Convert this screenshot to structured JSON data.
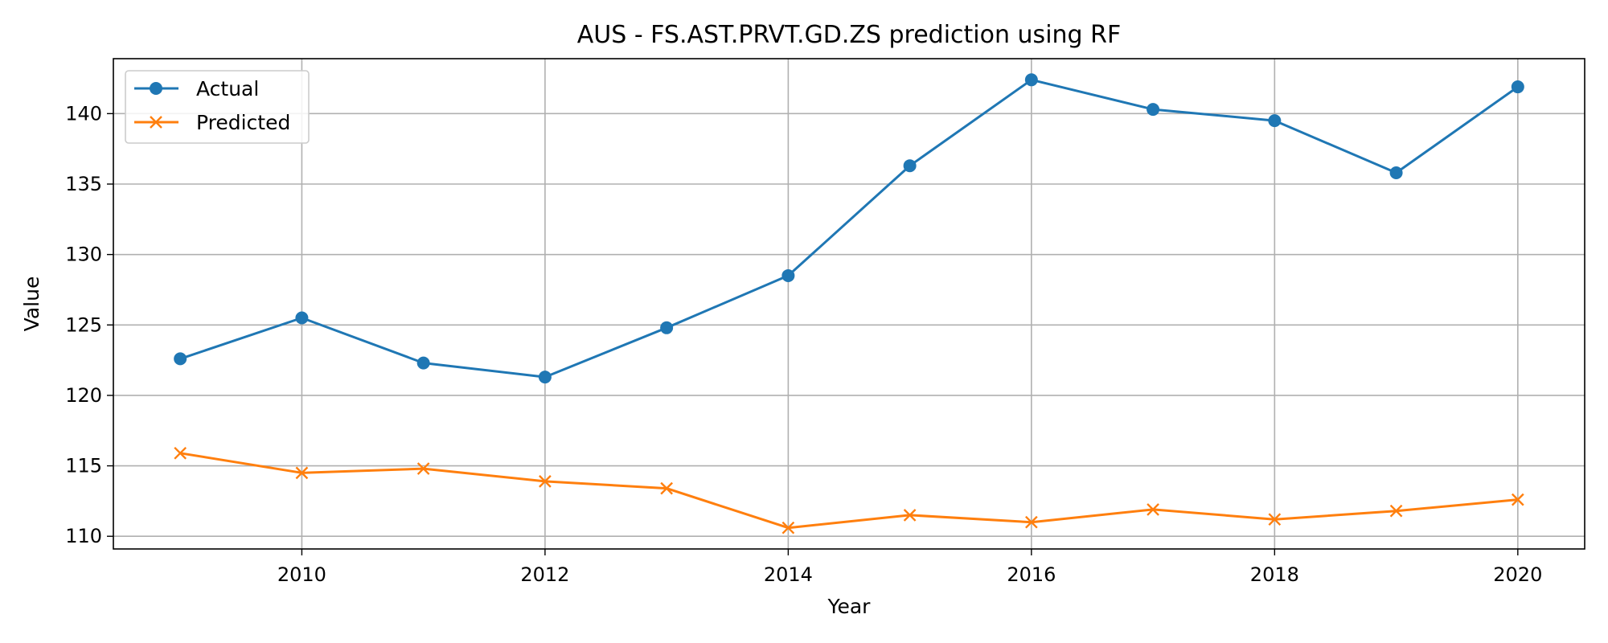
{
  "chart_data": {
    "type": "line",
    "title": "AUS - FS.AST.PRVT.GD.ZS prediction using RF",
    "xlabel": "Year",
    "ylabel": "Value",
    "x": [
      2009,
      2010,
      2011,
      2012,
      2013,
      2014,
      2015,
      2016,
      2017,
      2018,
      2019,
      2020
    ],
    "xlim": [
      2008.45,
      2020.55
    ],
    "ylim": [
      109.1,
      143.9
    ],
    "xticks": [
      2010,
      2012,
      2014,
      2016,
      2018,
      2020
    ],
    "xtick_labels": [
      "2010",
      "2012",
      "2014",
      "2016",
      "2018",
      "2020"
    ],
    "yticks": [
      110,
      115,
      120,
      125,
      130,
      135,
      140
    ],
    "ytick_labels": [
      "110",
      "115",
      "120",
      "125",
      "130",
      "135",
      "140"
    ],
    "grid": true,
    "legend_position": "upper-left",
    "series": [
      {
        "name": "Actual",
        "color": "#1f77b4",
        "marker": "circle",
        "values": [
          122.6,
          125.5,
          122.3,
          121.3,
          124.8,
          128.5,
          136.3,
          142.4,
          140.3,
          139.5,
          135.8,
          141.9
        ]
      },
      {
        "name": "Predicted",
        "color": "#ff7f0e",
        "marker": "x",
        "values": [
          115.9,
          114.5,
          114.8,
          113.9,
          113.4,
          110.6,
          111.5,
          111.0,
          111.9,
          111.2,
          111.8,
          112.6
        ]
      }
    ]
  }
}
